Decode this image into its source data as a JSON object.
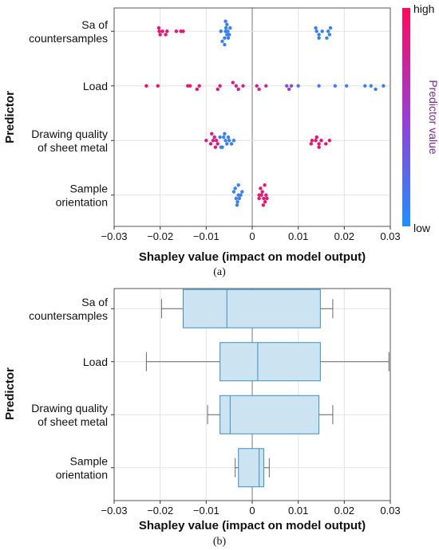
{
  "chart_data": [
    {
      "type": "scatter",
      "panel_label": "(a)",
      "xlabel": "Shapley value (impact on model output)",
      "ylabel": "Predictor",
      "xlim": [
        -0.03,
        0.03
      ],
      "xticks": [
        "−0.03",
        "−0.02",
        "−0.01",
        "0",
        "0.01",
        "0.02",
        "0.03"
      ],
      "grid": true,
      "categories": [
        {
          "lines": [
            "Sa of",
            "countersamples"
          ]
        },
        {
          "lines": [
            "Load"
          ]
        },
        {
          "lines": [
            "Drawing quality",
            "of sheet metal"
          ]
        },
        {
          "lines": [
            "Sample",
            "orientation"
          ]
        }
      ],
      "colorbar": {
        "title": "Predictor value",
        "high_label": "high",
        "low_label": "low",
        "high_color": "#ff0a5a",
        "low_color": "#1e90ff"
      },
      "series": [
        {
          "points": [
            {
              "x": -0.0165,
              "v": 0.92
            },
            {
              "x": -0.0155,
              "v": 0.92
            },
            {
              "x": -0.015,
              "v": 0.92
            },
            {
              "x": -0.0202,
              "v": 0.92
            },
            {
              "x": -0.0185,
              "v": 0.92
            },
            {
              "x": -0.02,
              "v": 0.92
            },
            {
              "x": -0.0195,
              "v": 0.92
            },
            {
              "x": -0.0203,
              "v": 0.92
            },
            {
              "x": -0.0188,
              "v": 0.92
            },
            {
              "x": -0.0058,
              "v": 0.1
            },
            {
              "x": -0.0055,
              "v": 0.1
            },
            {
              "x": -0.0053,
              "v": 0.1
            },
            {
              "x": -0.0057,
              "v": 0.1
            },
            {
              "x": -0.006,
              "v": 0.1
            },
            {
              "x": -0.0055,
              "v": 0.1
            },
            {
              "x": -0.0065,
              "v": 0.1
            },
            {
              "x": -0.005,
              "v": 0.1
            },
            {
              "x": -0.0058,
              "v": 0.1
            },
            {
              "x": -0.006,
              "v": 0.1
            },
            {
              "x": -0.0048,
              "v": 0.1
            },
            {
              "x": -0.0068,
              "v": 0.1
            },
            {
              "x": -0.0052,
              "v": 0.1
            },
            {
              "x": 0.0152,
              "v": 0.1
            },
            {
              "x": 0.014,
              "v": 0.1
            },
            {
              "x": 0.0165,
              "v": 0.1
            },
            {
              "x": 0.0168,
              "v": 0.1
            },
            {
              "x": 0.017,
              "v": 0.1
            },
            {
              "x": 0.0162,
              "v": 0.1
            },
            {
              "x": 0.0145,
              "v": 0.1
            },
            {
              "x": 0.0138,
              "v": 0.1
            },
            {
              "x": 0.0145,
              "v": 0.1
            }
          ]
        },
        {
          "points": [
            {
              "x": -0.023,
              "v": 0.92
            },
            {
              "x": -0.0205,
              "v": 0.92
            },
            {
              "x": -0.014,
              "v": 0.92
            },
            {
              "x": -0.0115,
              "v": 0.92
            },
            {
              "x": -0.012,
              "v": 0.92
            },
            {
              "x": -0.0135,
              "v": 0.9
            },
            {
              "x": -0.007,
              "v": 0.85
            },
            {
              "x": -0.0075,
              "v": 0.85
            },
            {
              "x": -0.0035,
              "v": 0.8
            },
            {
              "x": -0.002,
              "v": 0.8
            },
            {
              "x": -0.003,
              "v": 0.8
            },
            {
              "x": -0.0042,
              "v": 0.8
            },
            {
              "x": 0.001,
              "v": 0.75
            },
            {
              "x": 0.0015,
              "v": 0.75
            },
            {
              "x": 0.003,
              "v": 0.7
            },
            {
              "x": 0.0075,
              "v": 0.45
            },
            {
              "x": 0.0085,
              "v": 0.45
            },
            {
              "x": 0.008,
              "v": 0.45
            },
            {
              "x": 0.01,
              "v": 0.15
            },
            {
              "x": 0.0145,
              "v": 0.1
            },
            {
              "x": 0.018,
              "v": 0.1
            },
            {
              "x": 0.0205,
              "v": 0.1
            },
            {
              "x": 0.0245,
              "v": 0.1
            },
            {
              "x": 0.0258,
              "v": 0.1
            },
            {
              "x": 0.0268,
              "v": 0.1
            },
            {
              "x": 0.0285,
              "v": 0.1
            }
          ]
        },
        {
          "points": [
            {
              "x": -0.0085,
              "v": 0.85
            },
            {
              "x": -0.0078,
              "v": 0.85
            },
            {
              "x": -0.009,
              "v": 0.85
            },
            {
              "x": -0.0082,
              "v": 0.85
            },
            {
              "x": -0.0075,
              "v": 0.85
            },
            {
              "x": -0.008,
              "v": 0.85
            },
            {
              "x": -0.0088,
              "v": 0.85
            },
            {
              "x": -0.01,
              "v": 0.85
            },
            {
              "x": -0.0058,
              "v": 0.1
            },
            {
              "x": -0.0055,
              "v": 0.1
            },
            {
              "x": -0.005,
              "v": 0.1
            },
            {
              "x": -0.0062,
              "v": 0.1
            },
            {
              "x": -0.0045,
              "v": 0.1
            },
            {
              "x": -0.004,
              "v": 0.1
            },
            {
              "x": -0.0065,
              "v": 0.1
            },
            {
              "x": -0.007,
              "v": 0.1
            },
            {
              "x": -0.006,
              "v": 0.1
            },
            {
              "x": -0.0052,
              "v": 0.1
            },
            {
              "x": -0.0068,
              "v": 0.1
            },
            {
              "x": 0.013,
              "v": 0.92
            },
            {
              "x": 0.0138,
              "v": 0.92
            },
            {
              "x": 0.0145,
              "v": 0.92
            },
            {
              "x": 0.015,
              "v": 0.92
            },
            {
              "x": 0.016,
              "v": 0.92
            },
            {
              "x": 0.0168,
              "v": 0.92
            },
            {
              "x": 0.014,
              "v": 0.92
            },
            {
              "x": 0.0128,
              "v": 0.92
            },
            {
              "x": 0.0145,
              "v": 0.92
            }
          ]
        },
        {
          "points": [
            {
              "x": -0.003,
              "v": 0.1
            },
            {
              "x": -0.0025,
              "v": 0.1
            },
            {
              "x": -0.0035,
              "v": 0.1
            },
            {
              "x": -0.004,
              "v": 0.1
            },
            {
              "x": -0.0028,
              "v": 0.1
            },
            {
              "x": -0.0032,
              "v": 0.1
            },
            {
              "x": -0.0037,
              "v": 0.1
            },
            {
              "x": -0.0033,
              "v": 0.1
            },
            {
              "x": -0.0022,
              "v": 0.1
            },
            {
              "x": -0.003,
              "v": 0.1
            },
            {
              "x": 0.002,
              "v": 0.92
            },
            {
              "x": 0.0025,
              "v": 0.92
            },
            {
              "x": 0.0015,
              "v": 0.92
            },
            {
              "x": 0.003,
              "v": 0.92
            },
            {
              "x": 0.0022,
              "v": 0.92
            },
            {
              "x": 0.0028,
              "v": 0.92
            },
            {
              "x": 0.0018,
              "v": 0.92
            },
            {
              "x": 0.0032,
              "v": 0.92
            },
            {
              "x": 0.0024,
              "v": 0.92
            },
            {
              "x": 0.0015,
              "v": 0.92
            },
            {
              "x": 0.0027,
              "v": 0.92
            }
          ]
        }
      ]
    },
    {
      "type": "box",
      "panel_label": "(b)",
      "xlabel": "Shapley value (impact on model output)",
      "ylabel": "Predictor",
      "xlim": [
        -0.03,
        0.03
      ],
      "xticks": [
        "−0.03",
        "−0.02",
        "−0.01",
        "0",
        "0.01",
        "0.02",
        "0.03"
      ],
      "grid": true,
      "box_color": "#cce3f2",
      "box_edge": "#3a8fc6",
      "categories": [
        {
          "lines": [
            "Sa of",
            "countersamples"
          ],
          "whisker_low": -0.0197,
          "q1": -0.015,
          "median": -0.0055,
          "q3": 0.0148,
          "whisker_high": 0.0175
        },
        {
          "lines": [
            "Load"
          ],
          "whisker_low": -0.023,
          "q1": -0.007,
          "median": 0.0012,
          "q3": 0.0148,
          "whisker_high": 0.0297
        },
        {
          "lines": [
            "Drawing quality",
            "of sheet metal"
          ],
          "whisker_low": -0.0097,
          "q1": -0.007,
          "median": -0.0048,
          "q3": 0.0145,
          "whisker_high": 0.0175
        },
        {
          "lines": [
            "Sample",
            "orientation"
          ],
          "whisker_low": -0.0037,
          "q1": -0.003,
          "median": 0.0015,
          "q3": 0.0025,
          "whisker_high": 0.0037
        }
      ]
    }
  ]
}
